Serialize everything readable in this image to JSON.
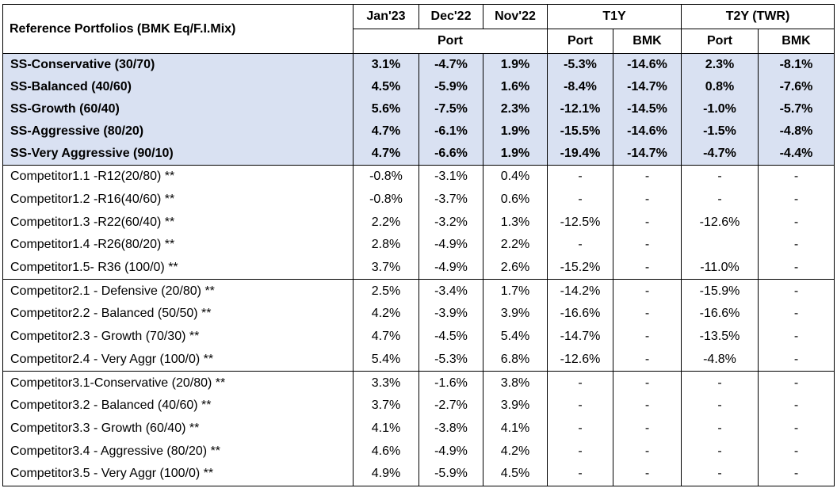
{
  "header": {
    "title": "Reference Portfolios (BMK Eq/F.I.Mix)",
    "months": [
      "Jan'23",
      "Dec'22",
      "Nov'22"
    ],
    "t1y": "T1Y",
    "t2y": "T2Y (TWR)",
    "port": "Port",
    "bmk": "BMK"
  },
  "groups": [
    {
      "highlight": true,
      "rows": [
        {
          "name": "SS-Conservative (30/70)",
          "v": [
            "3.1%",
            "-4.7%",
            "1.9%",
            "-5.3%",
            "-14.6%",
            "2.3%",
            "-8.1%"
          ]
        },
        {
          "name": "SS-Balanced (40/60)",
          "v": [
            "4.5%",
            "-5.9%",
            "1.6%",
            "-8.4%",
            "-14.7%",
            "0.8%",
            "-7.6%"
          ]
        },
        {
          "name": "SS-Growth (60/40)",
          "v": [
            "5.6%",
            "-7.5%",
            "2.3%",
            "-12.1%",
            "-14.5%",
            "-1.0%",
            "-5.7%"
          ]
        },
        {
          "name": "SS-Aggressive (80/20)",
          "v": [
            "4.7%",
            "-6.1%",
            "1.9%",
            "-15.5%",
            "-14.6%",
            "-1.5%",
            "-4.8%"
          ]
        },
        {
          "name": "SS-Very Aggressive (90/10)",
          "v": [
            "4.7%",
            "-6.6%",
            "1.9%",
            "-19.4%",
            "-14.7%",
            "-4.7%",
            "-4.4%"
          ]
        }
      ]
    },
    {
      "highlight": false,
      "rows": [
        {
          "name": "Competitor1.1 -R12(20/80) **",
          "v": [
            "-0.8%",
            "-3.1%",
            "0.4%",
            "-",
            "-",
            "-",
            "-"
          ]
        },
        {
          "name": "Competitor1.2 -R16(40/60) **",
          "v": [
            "-0.8%",
            "-3.7%",
            "0.6%",
            "-",
            "-",
            "-",
            "-"
          ]
        },
        {
          "name": "Competitor1.3 -R22(60/40) **",
          "v": [
            "2.2%",
            "-3.2%",
            "1.3%",
            "-12.5%",
            "-",
            "-12.6%",
            "-"
          ]
        },
        {
          "name": "Competitor1.4 -R26(80/20) **",
          "v": [
            "2.8%",
            "-4.9%",
            "2.2%",
            "-",
            "-",
            "",
            "-"
          ]
        },
        {
          "name": "Competitor1.5- R36 (100/0) **",
          "v": [
            "3.7%",
            "-4.9%",
            "2.6%",
            "-15.2%",
            "-",
            "-11.0%",
            "-"
          ]
        }
      ]
    },
    {
      "highlight": false,
      "rows": [
        {
          "name": "Competitor2.1  - Defensive  (20/80) **",
          "v": [
            "2.5%",
            "-3.4%",
            "1.7%",
            "-14.2%",
            "-",
            "-15.9%",
            "-"
          ]
        },
        {
          "name": "Competitor2.2  - Balanced (50/50) **",
          "v": [
            "4.2%",
            "-3.9%",
            "3.9%",
            "-16.6%",
            "-",
            "-16.6%",
            "-"
          ]
        },
        {
          "name": "Competitor2.3  - Growth  (70/30) **",
          "v": [
            "4.7%",
            "-4.5%",
            "5.4%",
            "-14.7%",
            "-",
            "-13.5%",
            "-"
          ]
        },
        {
          "name": "Competitor2.4  - Very Aggr  (100/0) **",
          "v": [
            "5.4%",
            "-5.3%",
            "6.8%",
            "-12.6%",
            "-",
            "-4.8%",
            "-"
          ]
        }
      ]
    },
    {
      "highlight": false,
      "rows": [
        {
          "name": "Competitor3.1-Conservative (20/80) **",
          "v": [
            "3.3%",
            "-1.6%",
            "3.8%",
            "-",
            "-",
            "-",
            "-"
          ]
        },
        {
          "name": "Competitor3.2 - Balanced  (40/60) **",
          "v": [
            "3.7%",
            "-2.7%",
            "3.9%",
            "-",
            "-",
            "-",
            "-"
          ]
        },
        {
          "name": "Competitor3.3 - Growth  (60/40) **",
          "v": [
            "4.1%",
            "-3.8%",
            "4.1%",
            "-",
            "-",
            "-",
            "-"
          ]
        },
        {
          "name": "Competitor3.4 - Aggressive  (80/20) **",
          "v": [
            "4.6%",
            "-4.9%",
            "4.2%",
            "-",
            "-",
            "-",
            "-"
          ]
        },
        {
          "name": "Competitor3.5  - Very Aggr (100/0) **",
          "v": [
            "4.9%",
            "-5.9%",
            "4.5%",
            "-",
            "-",
            "-",
            "-"
          ]
        }
      ]
    }
  ]
}
